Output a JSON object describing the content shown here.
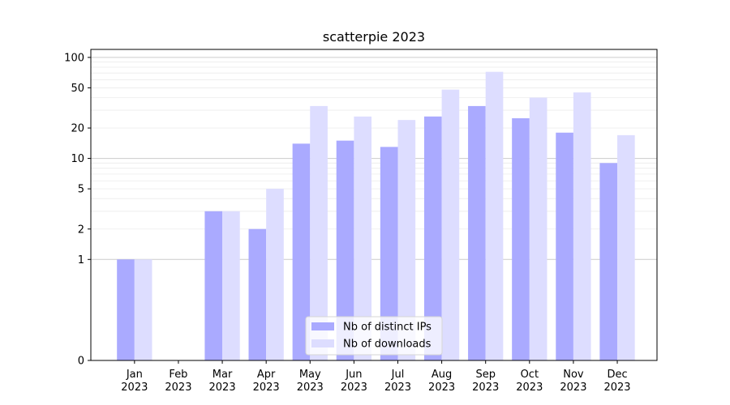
{
  "chart_data": {
    "type": "bar",
    "title": "scatterpie 2023",
    "xlabel": "",
    "ylabel": "",
    "y_scale": "symlog",
    "ylim": [
      0,
      120
    ],
    "y_ticks": [
      0,
      1,
      2,
      5,
      10,
      20,
      50,
      100
    ],
    "grid": "horizontal",
    "legend_position": "lower-center",
    "categories": [
      "Jan",
      "Feb",
      "Mar",
      "Apr",
      "May",
      "Jun",
      "Jul",
      "Aug",
      "Sep",
      "Oct",
      "Nov",
      "Dec"
    ],
    "category_years": [
      "2023",
      "2023",
      "2023",
      "2023",
      "2023",
      "2023",
      "2023",
      "2023",
      "2023",
      "2023",
      "2023",
      "2023"
    ],
    "series": [
      {
        "name": "Nb of distinct IPs",
        "color": "#aaaaff",
        "values": [
          1,
          0,
          3,
          2,
          14,
          15,
          13,
          26,
          33,
          25,
          18,
          9
        ]
      },
      {
        "name": "Nb of downloads",
        "color": "#ddddff",
        "values": [
          1,
          0,
          3,
          5,
          33,
          26,
          24,
          48,
          72,
          40,
          45,
          17
        ]
      }
    ]
  }
}
